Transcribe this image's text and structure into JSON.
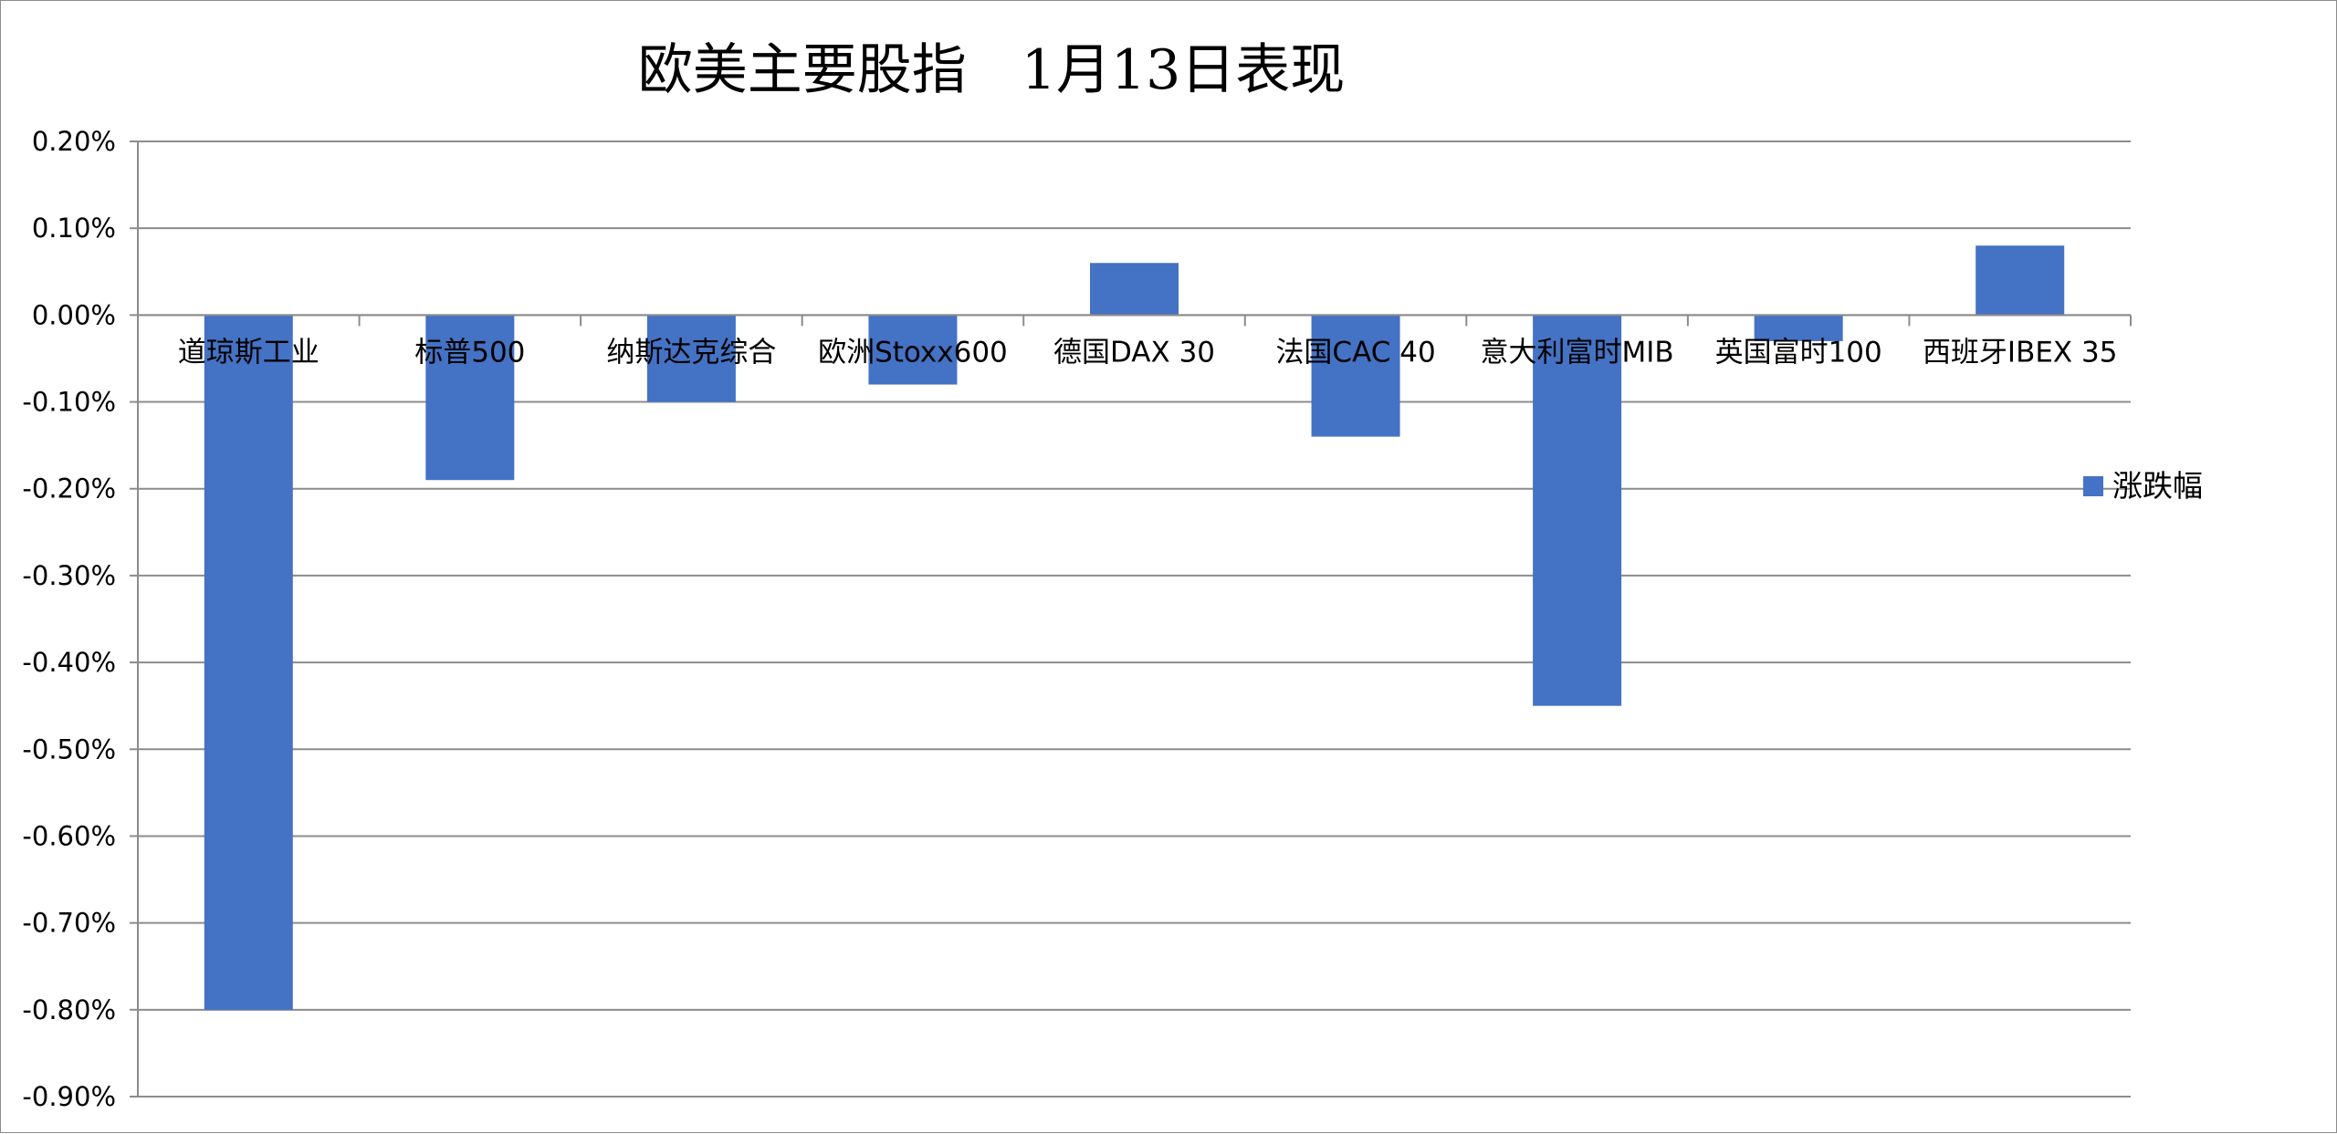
{
  "chart_data": {
    "type": "bar",
    "title": "欧美主要股指　1月13日表现",
    "xlabel": "",
    "ylabel": "",
    "categories": [
      "道琼斯工业",
      "标普500",
      "纳斯达克综合",
      "欧洲Stoxx600",
      "德国DAX 30",
      "法国CAC 40",
      "意大利富时MIB",
      "英国富时100",
      "西班牙IBEX 35"
    ],
    "series": [
      {
        "name": "涨跌幅",
        "values": [
          -0.8,
          -0.19,
          -0.1,
          -0.08,
          0.06,
          -0.14,
          -0.45,
          -0.03,
          0.08
        ],
        "color": "#4472C4"
      }
    ],
    "ylim": [
      -0.9,
      0.2
    ],
    "yticks": [
      0.2,
      0.1,
      0.0,
      -0.1,
      -0.2,
      -0.3,
      -0.4,
      -0.5,
      -0.6,
      -0.7,
      -0.8,
      -0.9
    ],
    "ytick_labels": [
      "0.20%",
      "0.10%",
      "0.00%",
      "-0.10%",
      "-0.20%",
      "-0.30%",
      "-0.40%",
      "-0.50%",
      "-0.60%",
      "-0.70%",
      "-0.80%",
      "-0.90%"
    ],
    "grid": true,
    "legend_position": "right",
    "gridline_color": "#8c8c8c"
  }
}
